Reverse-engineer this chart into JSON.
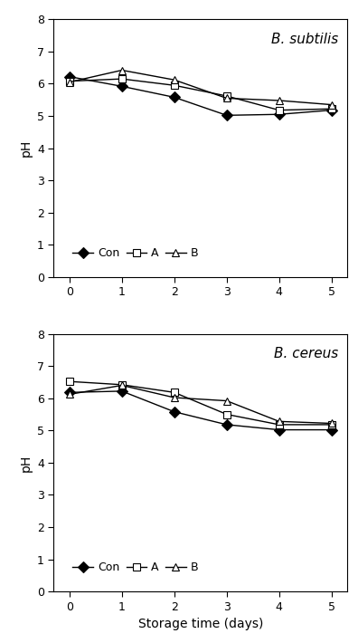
{
  "x": [
    0,
    1,
    2,
    3,
    4,
    5
  ],
  "subtilis": {
    "Con": [
      6.22,
      5.92,
      5.58,
      5.02,
      5.05,
      5.18
    ],
    "A": [
      6.08,
      6.15,
      5.95,
      5.62,
      5.18,
      5.22
    ],
    "B": [
      6.05,
      6.42,
      6.12,
      5.55,
      5.48,
      5.35
    ]
  },
  "cereus": {
    "Con": [
      6.18,
      6.22,
      5.58,
      5.18,
      5.02,
      5.02
    ],
    "A": [
      6.52,
      6.42,
      6.18,
      5.5,
      5.18,
      5.18
    ],
    "B": [
      6.12,
      6.4,
      6.02,
      5.92,
      5.28,
      5.22
    ]
  },
  "annotation_subtilis": "B. subtilis",
  "annotation_cereus": "B. cereus",
  "xlabel": "Storage time (days)",
  "ylabel": "pH",
  "ylim": [
    0,
    8
  ],
  "yticks": [
    0,
    1,
    2,
    3,
    4,
    5,
    6,
    7,
    8
  ],
  "xlim": [
    -0.3,
    5.3
  ],
  "xticks": [
    0,
    1,
    2,
    3,
    4,
    5
  ],
  "line_color": "#000000",
  "background_color": "#ffffff",
  "con_marker": "D",
  "a_marker": "s",
  "b_marker": "^",
  "marker_size": 6,
  "linewidth": 1.0,
  "fontsize_label": 10,
  "fontsize_tick": 9,
  "fontsize_legend": 9,
  "fontsize_annot": 11
}
